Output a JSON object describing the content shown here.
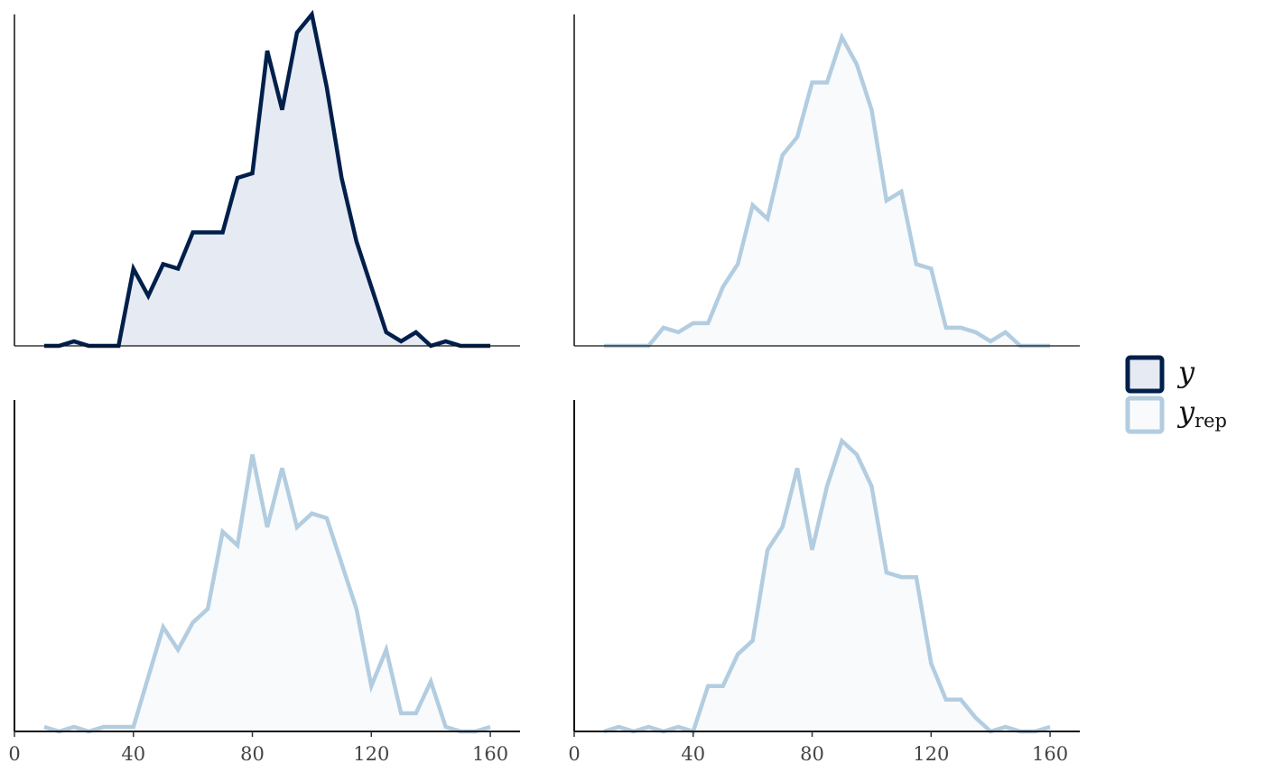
{
  "chart_data": [
    {
      "type": "freqpoly",
      "color": "#011f4b",
      "fill": "#e6eaf2",
      "x": [
        10,
        15,
        20,
        25,
        30,
        35,
        40,
        45,
        50,
        55,
        60,
        65,
        70,
        75,
        80,
        85,
        90,
        95,
        100,
        105,
        110,
        115,
        120,
        125,
        130,
        135,
        140,
        145,
        150,
        155,
        160
      ],
      "values": [
        0,
        0,
        1,
        0,
        0,
        0,
        17,
        11,
        18,
        17,
        25,
        25,
        25,
        37,
        38,
        65,
        52,
        69,
        73,
        57,
        37,
        23,
        13,
        3,
        1,
        3,
        0,
        1,
        0,
        0,
        0
      ],
      "xlim": [
        0,
        170
      ],
      "ylim": [
        0,
        73
      ]
    },
    {
      "type": "freqpoly",
      "color": "#b3cde0",
      "fill": "#f8fafc",
      "x": [
        10,
        15,
        20,
        25,
        30,
        35,
        40,
        45,
        50,
        55,
        60,
        65,
        70,
        75,
        80,
        85,
        90,
        95,
        100,
        105,
        110,
        115,
        120,
        125,
        130,
        135,
        140,
        145,
        150,
        155,
        160
      ],
      "values": [
        0,
        0,
        0,
        0,
        4,
        3,
        5,
        5,
        13,
        18,
        31,
        28,
        42,
        46,
        58,
        58,
        68,
        62,
        52,
        32,
        34,
        18,
        17,
        4,
        4,
        3,
        1,
        3,
        0,
        0,
        0
      ],
      "xlim": [
        0,
        170
      ],
      "ylim": [
        0,
        73
      ]
    },
    {
      "type": "freqpoly",
      "color": "#b3cde0",
      "fill": "#f8fafc",
      "x": [
        10,
        15,
        20,
        25,
        30,
        35,
        40,
        45,
        50,
        55,
        60,
        65,
        70,
        75,
        80,
        85,
        90,
        95,
        100,
        105,
        110,
        115,
        120,
        125,
        130,
        135,
        140,
        145,
        150,
        155,
        160
      ],
      "values": [
        1,
        0,
        1,
        0,
        1,
        1,
        1,
        12,
        23,
        18,
        24,
        27,
        44,
        41,
        61,
        45,
        58,
        45,
        48,
        47,
        37,
        27,
        10,
        18,
        4,
        4,
        11,
        1,
        0,
        0,
        1
      ],
      "xlim": [
        0,
        170
      ],
      "ylim": [
        0,
        73
      ],
      "xticks": [
        0,
        40,
        80,
        120,
        160
      ]
    },
    {
      "type": "freqpoly",
      "color": "#b3cde0",
      "fill": "#f8fafc",
      "x": [
        10,
        15,
        20,
        25,
        30,
        35,
        40,
        45,
        50,
        55,
        60,
        65,
        70,
        75,
        80,
        85,
        90,
        95,
        100,
        105,
        110,
        115,
        120,
        125,
        130,
        135,
        140,
        145,
        150,
        155,
        160
      ],
      "values": [
        0,
        1,
        0,
        1,
        0,
        1,
        0,
        10,
        10,
        17,
        20,
        40,
        45,
        58,
        40,
        54,
        64,
        61,
        54,
        35,
        34,
        34,
        15,
        7,
        7,
        3,
        0,
        1,
        0,
        0,
        1
      ],
      "xlim": [
        0,
        170
      ],
      "ylim": [
        0,
        73
      ],
      "xticks": [
        0,
        40,
        80,
        120,
        160
      ]
    }
  ],
  "legend": {
    "items": [
      {
        "label": "y",
        "color": "#011f4b",
        "fill": "#e6eaf2"
      },
      {
        "label": "y",
        "subscript": "rep",
        "color": "#b3cde0",
        "fill": "#f8fafc"
      }
    ]
  }
}
